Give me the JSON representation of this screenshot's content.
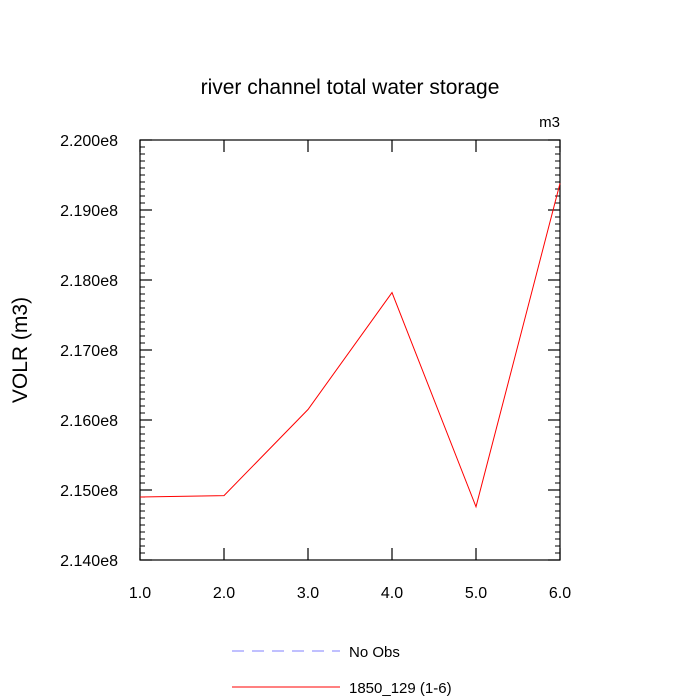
{
  "chart_data": {
    "type": "line",
    "title": "river channel total water storage",
    "units_label": "m3",
    "ylabel": "VOLR  (m3)",
    "xlabel": "",
    "xlim": [
      1.0,
      6.0
    ],
    "ylim": [
      214000000,
      220000000
    ],
    "x_ticks": [
      1.0,
      2.0,
      3.0,
      4.0,
      5.0,
      6.0
    ],
    "x_tick_labels": [
      "1.0",
      "2.0",
      "3.0",
      "4.0",
      "5.0",
      "6.0"
    ],
    "y_ticks": [
      214000000,
      215000000,
      216000000,
      217000000,
      218000000,
      219000000,
      220000000
    ],
    "y_tick_labels": [
      "2.140e8",
      "2.150e8",
      "2.160e8",
      "2.170e8",
      "2.180e8",
      "2.190e8",
      "2.200e8"
    ],
    "grid": false,
    "legend_position": "bottom",
    "series": [
      {
        "name": "No Obs",
        "color": "#8080ff",
        "dashed": true,
        "x": [],
        "y": []
      },
      {
        "name": "1850_129 (1-6)",
        "color": "#ff0000",
        "dashed": false,
        "x": [
          1.0,
          2.0,
          3.0,
          4.0,
          5.0,
          6.0
        ],
        "y": [
          214900000,
          214920000,
          216150000,
          217820000,
          214760000,
          219380000
        ]
      }
    ]
  }
}
